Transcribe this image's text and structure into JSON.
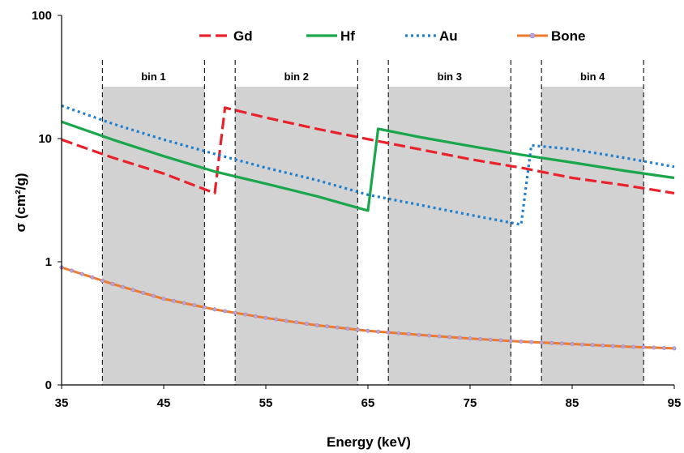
{
  "chart_data": {
    "type": "line",
    "title": "",
    "xlabel": "Energy (keV)",
    "ylabel": "σ (cm²/g)",
    "y_scale": "log",
    "xlim": [
      35,
      95
    ],
    "ylim": [
      0.1,
      100
    ],
    "x_ticks": [
      35,
      45,
      55,
      65,
      75,
      85,
      95
    ],
    "y_ticks": [
      {
        "value": 0.1,
        "label": "0"
      },
      {
        "value": 1,
        "label": "1"
      },
      {
        "value": 10,
        "label": "10"
      },
      {
        "value": 100,
        "label": "100"
      }
    ],
    "grid": "none",
    "legend_position": "top",
    "bins": [
      {
        "label": "bin 1",
        "range": [
          39,
          49
        ]
      },
      {
        "label": "bin 2",
        "range": [
          52,
          64
        ]
      },
      {
        "label": "bin 3",
        "range": [
          67,
          79
        ]
      },
      {
        "label": "bin 4",
        "range": [
          82,
          92
        ]
      }
    ],
    "series": [
      {
        "name": "Gd",
        "color": "#e8212a",
        "style": "dashed",
        "points": [
          [
            35,
            9.8
          ],
          [
            40,
            7.0
          ],
          [
            45,
            5.2
          ],
          [
            50,
            3.6
          ],
          [
            51,
            17.8
          ],
          [
            55,
            14.8
          ],
          [
            60,
            12.0
          ],
          [
            65,
            9.9
          ],
          [
            70,
            8.2
          ],
          [
            75,
            6.8
          ],
          [
            80,
            5.8
          ],
          [
            85,
            4.8
          ],
          [
            90,
            4.2
          ],
          [
            95,
            3.6
          ]
        ]
      },
      {
        "name": "Hf",
        "color": "#1aa64a",
        "style": "solid",
        "points": [
          [
            35,
            13.7
          ],
          [
            40,
            9.8
          ],
          [
            45,
            7.2
          ],
          [
            50,
            5.4
          ],
          [
            55,
            4.3
          ],
          [
            60,
            3.4
          ],
          [
            65,
            2.6
          ],
          [
            66,
            12.0
          ],
          [
            70,
            10.3
          ],
          [
            75,
            8.7
          ],
          [
            80,
            7.4
          ],
          [
            85,
            6.4
          ],
          [
            90,
            5.5
          ],
          [
            95,
            4.8
          ]
        ]
      },
      {
        "name": "Au",
        "color": "#1f7fcf",
        "style": "dotted",
        "points": [
          [
            35,
            18.5
          ],
          [
            40,
            13.2
          ],
          [
            45,
            9.8
          ],
          [
            50,
            7.5
          ],
          [
            55,
            5.8
          ],
          [
            60,
            4.6
          ],
          [
            65,
            3.5
          ],
          [
            70,
            2.9
          ],
          [
            75,
            2.4
          ],
          [
            80,
            2.0
          ],
          [
            81,
            8.8
          ],
          [
            85,
            8.2
          ],
          [
            90,
            7.0
          ],
          [
            95,
            5.9
          ]
        ]
      },
      {
        "name": "Bone",
        "color": "#ee7a2a",
        "style": "solid-markers",
        "points": [
          [
            35,
            0.9
          ],
          [
            40,
            0.66
          ],
          [
            45,
            0.5
          ],
          [
            50,
            0.41
          ],
          [
            55,
            0.35
          ],
          [
            60,
            0.305
          ],
          [
            65,
            0.275
          ],
          [
            70,
            0.255
          ],
          [
            75,
            0.238
          ],
          [
            80,
            0.225
          ],
          [
            85,
            0.215
          ],
          [
            90,
            0.205
          ],
          [
            95,
            0.198
          ]
        ]
      }
    ]
  }
}
